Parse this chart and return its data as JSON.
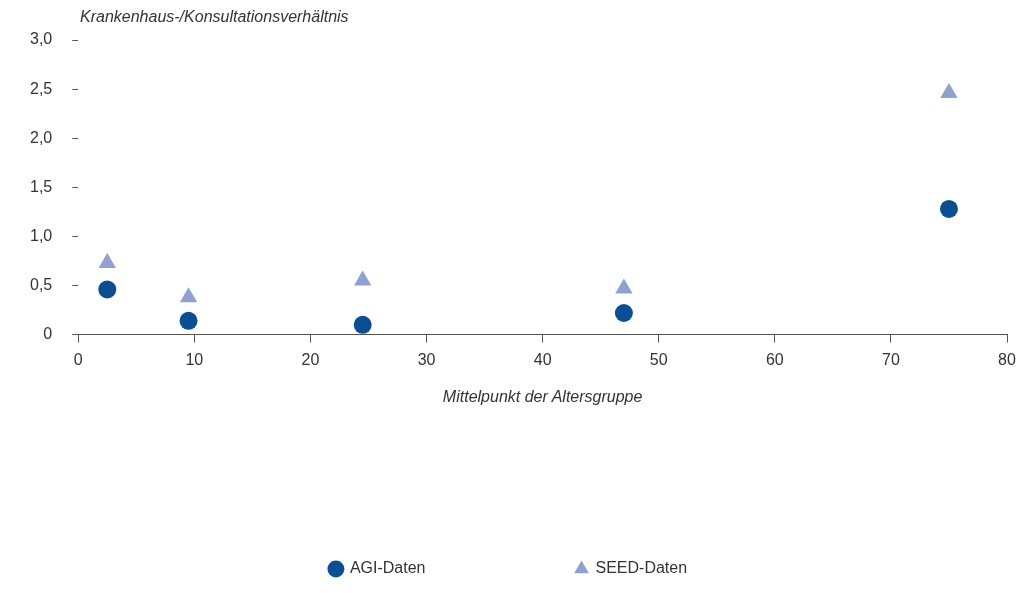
{
  "chart_data": {
    "type": "scatter",
    "xlabel": "Mittelpunkt der Altersgruppe",
    "ylabel": "Krankenhaus-/Konsultationsverhältnis",
    "x": [
      2.5,
      9.5,
      24.5,
      47,
      75
    ],
    "series": [
      {
        "name": "AGI-Daten",
        "color": "#0a4f96",
        "marker": "circle",
        "values": [
          0.46,
          0.14,
          0.1,
          0.22,
          1.28
        ]
      },
      {
        "name": "SEED-Daten",
        "color": "#8fa0d4",
        "marker": "triangle",
        "values": [
          0.73,
          0.38,
          0.55,
          0.47,
          2.46
        ]
      }
    ],
    "xlim": [
      0,
      80
    ],
    "xticks": [
      0,
      10,
      20,
      30,
      40,
      50,
      60,
      70,
      80
    ],
    "ylim": [
      0,
      3
    ],
    "yticks": [
      {
        "value": 0,
        "label": "0"
      },
      {
        "value": 0.5,
        "label": "0,5"
      },
      {
        "value": 1,
        "label": "1,0"
      },
      {
        "value": 1.5,
        "label": "1,5"
      },
      {
        "value": 2,
        "label": "2,0"
      },
      {
        "value": 2.5,
        "label": "2,5"
      },
      {
        "value": 3,
        "label": "3,0"
      }
    ],
    "grid": false,
    "legend": "bottom"
  }
}
